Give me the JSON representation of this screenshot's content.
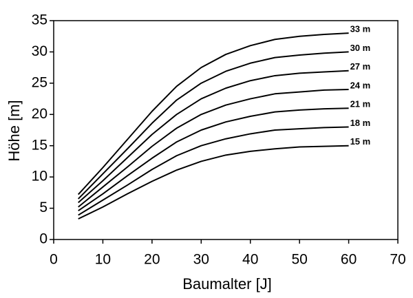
{
  "chart_data": {
    "type": "line",
    "x_label": "Baumalter [J]",
    "y_label": "Höhe [m]",
    "x": [
      5,
      10,
      15,
      20,
      25,
      30,
      35,
      40,
      45,
      50,
      55,
      60
    ],
    "series": [
      {
        "name": "33 m",
        "color": "#000000",
        "values": [
          7.2,
          11.5,
          16,
          20.5,
          24.5,
          27.5,
          29.6,
          31,
          32,
          32.5,
          32.8,
          33
        ]
      },
      {
        "name": "30 m",
        "color": "#000000",
        "values": [
          6.5,
          10.5,
          14.5,
          18.6,
          22.3,
          25.0,
          26.9,
          28.2,
          29.1,
          29.5,
          29.8,
          30
        ]
      },
      {
        "name": "27 m",
        "color": "#000000",
        "values": [
          5.9,
          9.4,
          13.1,
          16.8,
          20.0,
          22.5,
          24.2,
          25.4,
          26.2,
          26.6,
          26.8,
          27
        ]
      },
      {
        "name": "24 m",
        "color": "#000000",
        "values": [
          5.2,
          8.4,
          11.6,
          14.9,
          17.8,
          20.0,
          21.5,
          22.5,
          23.3,
          23.6,
          23.9,
          24
        ]
      },
      {
        "name": "21 m",
        "color": "#000000",
        "values": [
          4.6,
          7.3,
          10.2,
          13.0,
          15.6,
          17.5,
          18.8,
          19.7,
          20.4,
          20.7,
          20.9,
          21
        ]
      },
      {
        "name": "18 m",
        "color": "#000000",
        "values": [
          3.9,
          6.3,
          8.7,
          11.2,
          13.4,
          15.0,
          16.1,
          16.9,
          17.5,
          17.7,
          17.9,
          18
        ]
      },
      {
        "name": "15 m",
        "color": "#000000",
        "values": [
          3.3,
          5.2,
          7.3,
          9.3,
          11.1,
          12.5,
          13.5,
          14.1,
          14.5,
          14.8,
          14.9,
          15
        ]
      }
    ],
    "xlim": [
      0,
      70
    ],
    "xticks": [
      0,
      10,
      20,
      30,
      40,
      50,
      60,
      70
    ],
    "ylim": [
      0,
      35
    ],
    "yticks": [
      0,
      5,
      10,
      15,
      20,
      25,
      30,
      35
    ],
    "grid": false
  }
}
